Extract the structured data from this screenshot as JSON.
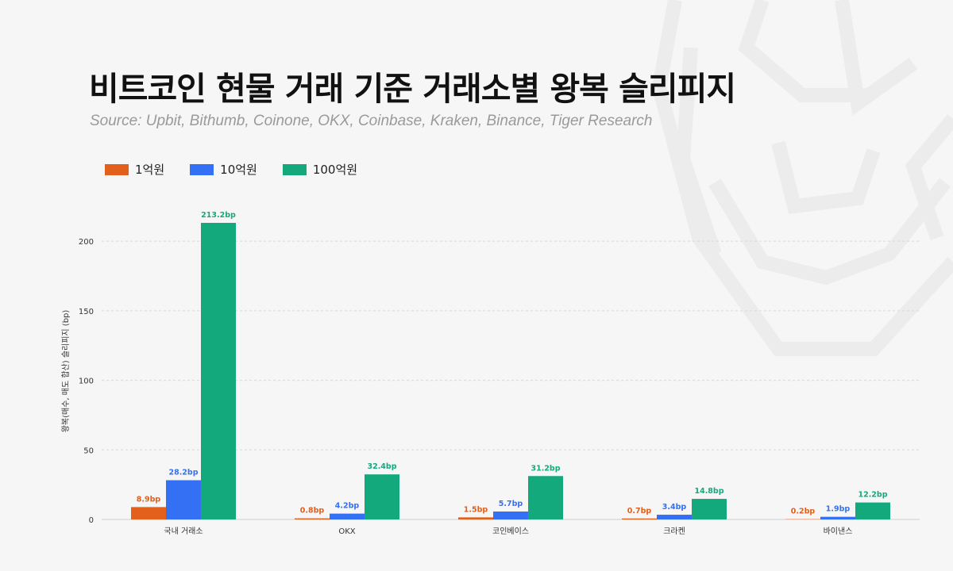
{
  "title": "비트코인 현물 거래 기준 거래소별 왕복 슬리피지",
  "subtitle": "Source: Upbit, Bithumb, Coinone, OKX, Coinbase, Kraken, Binance, Tiger Research",
  "colors": {
    "s1": "#e2601b",
    "s2": "#3370f4",
    "s3": "#14a97c"
  },
  "legend": [
    {
      "label": "1억원",
      "color": "#e2601b"
    },
    {
      "label": "10억원",
      "color": "#3370f4"
    },
    {
      "label": "100억원",
      "color": "#14a97c"
    }
  ],
  "chart_data": {
    "type": "bar",
    "categories": [
      "국내 거래소",
      "OKX",
      "코인베이스",
      "크라켄",
      "바이낸스"
    ],
    "series": [
      {
        "name": "1억원",
        "values": [
          8.9,
          0.8,
          1.5,
          0.7,
          0.2
        ],
        "labels": [
          "8.9bp",
          "0.8bp",
          "1.5bp",
          "0.7bp",
          "0.2bp"
        ]
      },
      {
        "name": "10억원",
        "values": [
          28.2,
          4.2,
          5.7,
          3.4,
          1.9
        ],
        "labels": [
          "28.2bp",
          "4.2bp",
          "5.7bp",
          "3.4bp",
          "1.9bp"
        ]
      },
      {
        "name": "100억원",
        "values": [
          213.2,
          32.4,
          31.2,
          14.8,
          12.2
        ],
        "labels": [
          "213.2bp",
          "32.4bp",
          "31.2bp",
          "14.8bp",
          "12.2bp"
        ]
      }
    ],
    "ylabel": "왕복(매수, 매도 합산) 슬리피지 (bp)",
    "yticks": [
      0,
      50,
      100,
      150,
      200
    ],
    "ytick_labels": [
      "0",
      "50",
      "100",
      "150",
      "200"
    ],
    "ylim": [
      0,
      213.2
    ],
    "grid": true,
    "legend_position": "top-left"
  }
}
